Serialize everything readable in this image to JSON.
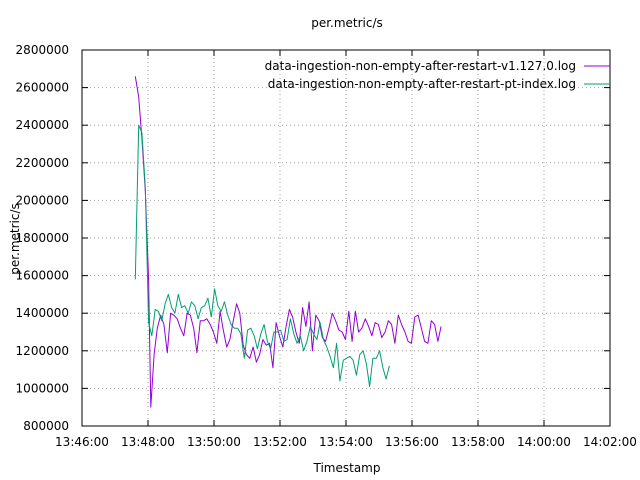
{
  "chart_data": {
    "type": "line",
    "title": "per.metric/s",
    "xlabel": "Timestamp",
    "ylabel": "per.metric/s",
    "xlim": [
      "13:46:00",
      "14:02:00"
    ],
    "ylim": [
      800000,
      2800000
    ],
    "x_ticks": [
      "13:46:00",
      "13:48:00",
      "13:50:00",
      "13:52:00",
      "13:54:00",
      "13:56:00",
      "13:58:00",
      "14:00:00",
      "14:02:00"
    ],
    "y_ticks": [
      800000,
      1000000,
      1200000,
      1400000,
      1600000,
      1800000,
      2000000,
      2200000,
      2400000,
      2600000,
      2800000
    ],
    "grid": true,
    "legend_position": "top-right",
    "series": [
      {
        "name": "data-ingestion-non-empty-after-restart-v1.127.0.log",
        "color": "#9400d3",
        "points": [
          [
            "13:47:37",
            2660000
          ],
          [
            "13:47:43",
            2550000
          ],
          [
            "13:47:49",
            2330000
          ],
          [
            "13:47:55",
            2050000
          ],
          [
            "13:48:01",
            1580000
          ],
          [
            "13:48:05",
            900000
          ],
          [
            "13:48:11",
            1180000
          ],
          [
            "13:48:17",
            1320000
          ],
          [
            "13:48:23",
            1390000
          ],
          [
            "13:48:29",
            1340000
          ],
          [
            "13:48:35",
            1190000
          ],
          [
            "13:48:41",
            1400000
          ],
          [
            "13:48:47",
            1390000
          ],
          [
            "13:48:53",
            1370000
          ],
          [
            "13:48:59",
            1320000
          ],
          [
            "13:49:05",
            1280000
          ],
          [
            "13:49:11",
            1400000
          ],
          [
            "13:49:17",
            1390000
          ],
          [
            "13:49:23",
            1320000
          ],
          [
            "13:49:29",
            1190000
          ],
          [
            "13:49:35",
            1360000
          ],
          [
            "13:49:41",
            1360000
          ],
          [
            "13:49:47",
            1370000
          ],
          [
            "13:49:53",
            1340000
          ],
          [
            "13:49:59",
            1300000
          ],
          [
            "13:50:05",
            1240000
          ],
          [
            "13:50:11",
            1410000
          ],
          [
            "13:50:17",
            1310000
          ],
          [
            "13:50:23",
            1220000
          ],
          [
            "13:50:29",
            1260000
          ],
          [
            "13:50:35",
            1360000
          ],
          [
            "13:50:41",
            1450000
          ],
          [
            "13:50:47",
            1400000
          ],
          [
            "13:50:53",
            1230000
          ],
          [
            "13:50:59",
            1180000
          ],
          [
            "13:51:05",
            1160000
          ],
          [
            "13:51:11",
            1220000
          ],
          [
            "13:51:17",
            1140000
          ],
          [
            "13:51:23",
            1180000
          ],
          [
            "13:51:29",
            1260000
          ],
          [
            "13:51:35",
            1230000
          ],
          [
            "13:51:41",
            1240000
          ],
          [
            "13:51:47",
            1110000
          ],
          [
            "13:51:53",
            1350000
          ],
          [
            "13:51:59",
            1280000
          ],
          [
            "13:52:05",
            1220000
          ],
          [
            "13:52:11",
            1330000
          ],
          [
            "13:52:17",
            1420000
          ],
          [
            "13:52:23",
            1380000
          ],
          [
            "13:52:29",
            1300000
          ],
          [
            "13:52:35",
            1240000
          ],
          [
            "13:52:41",
            1430000
          ],
          [
            "13:52:47",
            1330000
          ],
          [
            "13:52:53",
            1460000
          ],
          [
            "13:52:59",
            1200000
          ],
          [
            "13:53:05",
            1390000
          ],
          [
            "13:53:11",
            1360000
          ],
          [
            "13:53:17",
            1270000
          ],
          [
            "13:53:23",
            1250000
          ],
          [
            "13:53:29",
            1320000
          ],
          [
            "13:53:35",
            1400000
          ],
          [
            "13:53:41",
            1360000
          ],
          [
            "13:53:47",
            1310000
          ],
          [
            "13:53:53",
            1300000
          ],
          [
            "13:53:59",
            1260000
          ],
          [
            "13:54:05",
            1410000
          ],
          [
            "13:54:11",
            1250000
          ],
          [
            "13:54:17",
            1410000
          ],
          [
            "13:54:23",
            1300000
          ],
          [
            "13:54:29",
            1320000
          ],
          [
            "13:54:35",
            1370000
          ],
          [
            "13:54:41",
            1330000
          ],
          [
            "13:54:47",
            1280000
          ],
          [
            "13:54:53",
            1350000
          ],
          [
            "13:54:59",
            1340000
          ],
          [
            "13:55:05",
            1270000
          ],
          [
            "13:55:11",
            1300000
          ],
          [
            "13:55:17",
            1360000
          ],
          [
            "13:55:23",
            1340000
          ],
          [
            "13:55:29",
            1240000
          ],
          [
            "13:55:35",
            1390000
          ],
          [
            "13:55:41",
            1340000
          ],
          [
            "13:55:47",
            1300000
          ],
          [
            "13:55:53",
            1250000
          ],
          [
            "13:55:59",
            1240000
          ],
          [
            "13:56:05",
            1380000
          ],
          [
            "13:56:11",
            1390000
          ],
          [
            "13:56:17",
            1320000
          ],
          [
            "13:56:23",
            1250000
          ],
          [
            "13:56:29",
            1240000
          ],
          [
            "13:56:35",
            1360000
          ],
          [
            "13:56:41",
            1340000
          ],
          [
            "13:56:47",
            1250000
          ],
          [
            "13:56:53",
            1330000
          ]
        ]
      },
      {
        "name": "data-ingestion-non-empty-after-restart-pt-index.log",
        "color": "#009e73",
        "points": [
          [
            "13:47:37",
            1580000
          ],
          [
            "13:47:43",
            2400000
          ],
          [
            "13:47:49",
            2360000
          ],
          [
            "13:47:55",
            2070000
          ],
          [
            "13:48:01",
            1350000
          ],
          [
            "13:48:07",
            1280000
          ],
          [
            "13:48:13",
            1420000
          ],
          [
            "13:48:19",
            1410000
          ],
          [
            "13:48:25",
            1360000
          ],
          [
            "13:48:31",
            1450000
          ],
          [
            "13:48:37",
            1500000
          ],
          [
            "13:48:43",
            1430000
          ],
          [
            "13:48:49",
            1400000
          ],
          [
            "13:48:55",
            1500000
          ],
          [
            "13:49:01",
            1430000
          ],
          [
            "13:49:07",
            1440000
          ],
          [
            "13:49:13",
            1400000
          ],
          [
            "13:49:19",
            1460000
          ],
          [
            "13:49:25",
            1440000
          ],
          [
            "13:49:31",
            1370000
          ],
          [
            "13:49:37",
            1430000
          ],
          [
            "13:49:43",
            1440000
          ],
          [
            "13:49:49",
            1480000
          ],
          [
            "13:49:55",
            1380000
          ],
          [
            "13:50:01",
            1530000
          ],
          [
            "13:50:07",
            1440000
          ],
          [
            "13:50:13",
            1410000
          ],
          [
            "13:50:19",
            1460000
          ],
          [
            "13:50:25",
            1390000
          ],
          [
            "13:50:31",
            1340000
          ],
          [
            "13:50:37",
            1320000
          ],
          [
            "13:50:43",
            1320000
          ],
          [
            "13:50:49",
            1290000
          ],
          [
            "13:50:55",
            1160000
          ],
          [
            "13:51:01",
            1310000
          ],
          [
            "13:51:07",
            1320000
          ],
          [
            "13:51:13",
            1280000
          ],
          [
            "13:51:19",
            1210000
          ],
          [
            "13:51:25",
            1290000
          ],
          [
            "13:51:31",
            1340000
          ],
          [
            "13:51:37",
            1250000
          ],
          [
            "13:51:43",
            1210000
          ],
          [
            "13:51:49",
            1300000
          ],
          [
            "13:51:55",
            1300000
          ],
          [
            "13:52:01",
            1310000
          ],
          [
            "13:52:07",
            1250000
          ],
          [
            "13:52:13",
            1260000
          ],
          [
            "13:52:19",
            1370000
          ],
          [
            "13:52:25",
            1290000
          ],
          [
            "13:52:31",
            1240000
          ],
          [
            "13:52:37",
            1280000
          ],
          [
            "13:52:43",
            1200000
          ],
          [
            "13:52:49",
            1250000
          ],
          [
            "13:52:55",
            1330000
          ],
          [
            "13:53:01",
            1290000
          ],
          [
            "13:53:07",
            1260000
          ],
          [
            "13:53:13",
            1350000
          ],
          [
            "13:53:19",
            1260000
          ],
          [
            "13:53:25",
            1220000
          ],
          [
            "13:53:31",
            1170000
          ],
          [
            "13:53:37",
            1110000
          ],
          [
            "13:53:43",
            1240000
          ],
          [
            "13:53:49",
            1040000
          ],
          [
            "13:53:55",
            1150000
          ],
          [
            "13:54:01",
            1160000
          ],
          [
            "13:54:07",
            1170000
          ],
          [
            "13:54:13",
            1150000
          ],
          [
            "13:54:19",
            1070000
          ],
          [
            "13:54:25",
            1180000
          ],
          [
            "13:54:31",
            1200000
          ],
          [
            "13:54:37",
            1130000
          ],
          [
            "13:54:43",
            1010000
          ],
          [
            "13:54:49",
            1160000
          ],
          [
            "13:54:55",
            1160000
          ],
          [
            "13:55:01",
            1200000
          ],
          [
            "13:55:07",
            1110000
          ],
          [
            "13:55:13",
            1050000
          ],
          [
            "13:55:19",
            1120000
          ]
        ]
      }
    ]
  }
}
